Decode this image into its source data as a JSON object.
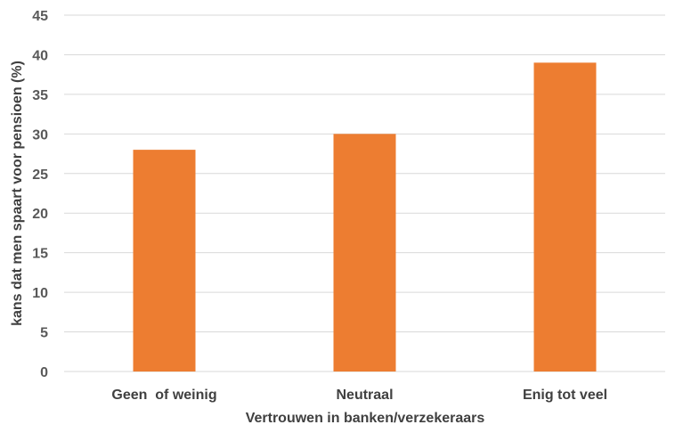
{
  "chart_data": {
    "type": "bar",
    "title": "",
    "xlabel": "Vertrouwen in banken/verzekeraars",
    "ylabel": "kans dat men spaart voor pensioen (%)",
    "categories": [
      "Geen  of weinig",
      "Neutraal",
      "Enig tot veel"
    ],
    "values": [
      28,
      30,
      39
    ],
    "ylim": [
      0,
      45
    ],
    "yticks": [
      "0",
      "5",
      "10",
      "15",
      "20",
      "25",
      "30",
      "35",
      "40",
      "45"
    ],
    "grid": true,
    "legend": "none",
    "bar_color": "#ED7D31",
    "grid_color": "#D9D9D9"
  }
}
